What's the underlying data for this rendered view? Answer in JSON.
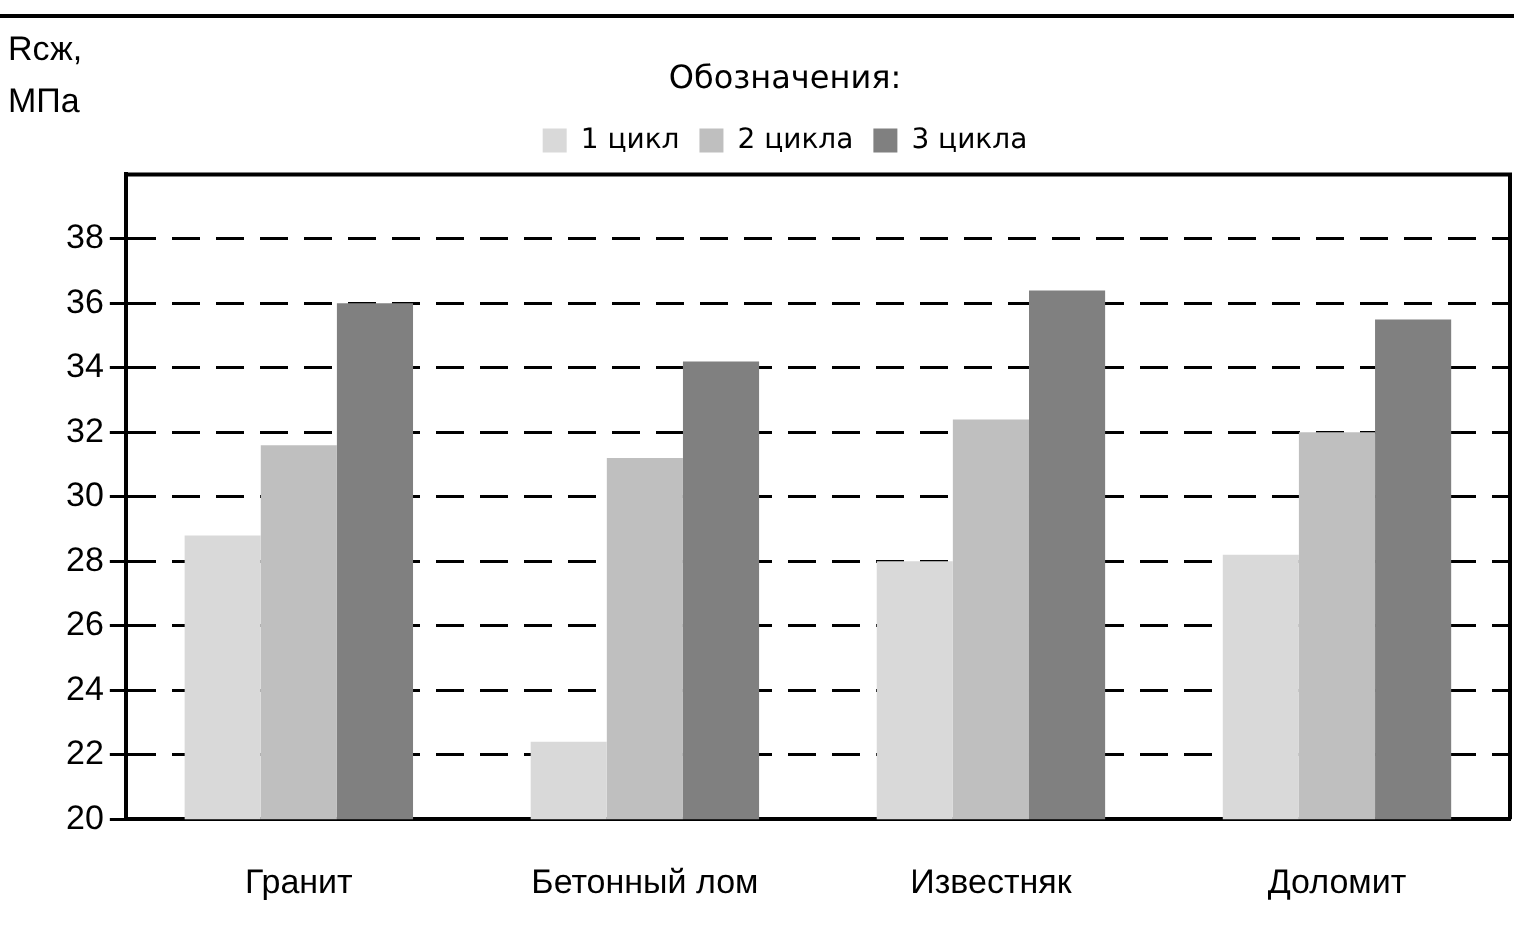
{
  "chart_data": {
    "type": "bar",
    "ylabel": "Rсж, МПа",
    "legend_title": "Обозначения:",
    "categories": [
      "Гранит",
      "Бетонный лом",
      "Известняк",
      "Доломит"
    ],
    "series": [
      {
        "name": "1 цикл",
        "color": "#d9d9d9",
        "values": [
          28.8,
          22.4,
          28.0,
          28.2
        ]
      },
      {
        "name": "2 цикла",
        "color": "#bfbfbf",
        "values": [
          31.6,
          31.2,
          32.4,
          32.0
        ]
      },
      {
        "name": "3 цикла",
        "color": "#808080",
        "values": [
          36.0,
          34.2,
          36.4,
          35.5
        ]
      }
    ],
    "ylim": [
      20,
      40
    ],
    "yticks": [
      20,
      22,
      24,
      26,
      28,
      30,
      32,
      34,
      36,
      38
    ],
    "grid": "y",
    "legend": "top"
  }
}
